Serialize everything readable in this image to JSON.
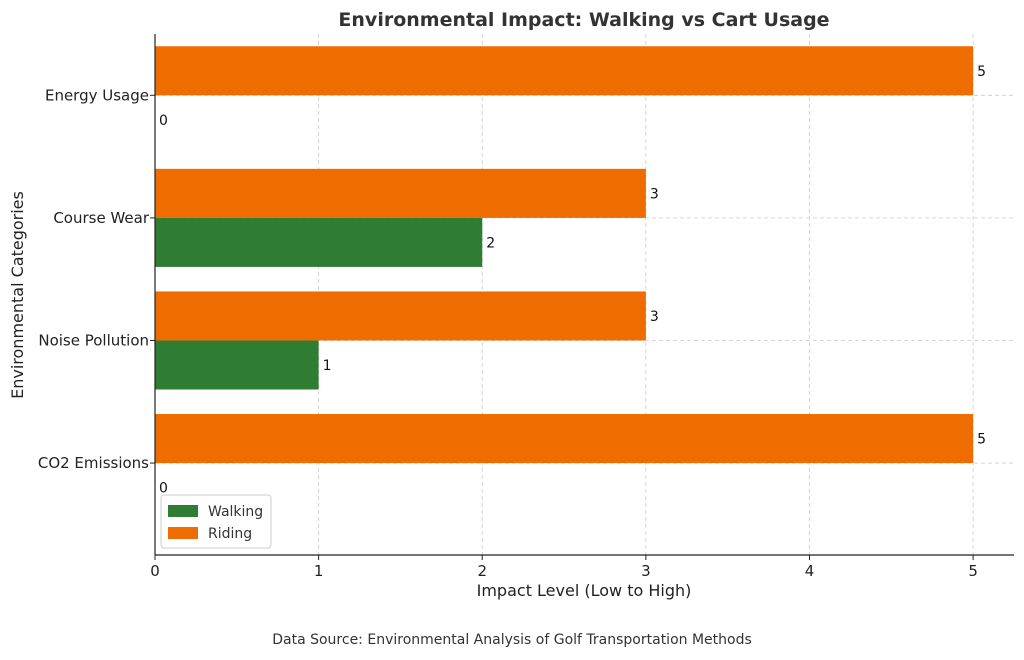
{
  "chart_data": {
    "type": "bar",
    "orientation": "horizontal",
    "title": "Environmental Impact: Walking vs Cart Usage",
    "xlabel": "Impact Level (Low to High)",
    "ylabel": "Environmental Categories",
    "categories": [
      "CO2 Emissions",
      "Noise Pollution",
      "Course Wear",
      "Energy Usage"
    ],
    "series": [
      {
        "name": "Walking",
        "values": [
          0,
          1,
          2,
          0
        ],
        "color": "#2e7d32"
      },
      {
        "name": "Riding",
        "values": [
          5,
          3,
          3,
          5
        ],
        "color": "#ef6c00"
      }
    ],
    "xlim": [
      0,
      5.25
    ],
    "xticks": [
      "0",
      "1",
      "2",
      "3",
      "4",
      "5"
    ],
    "grid": true,
    "legend_position": "lower-left"
  },
  "footer": {
    "source": "Data Source: Environmental Analysis of Golf Transportation Methods"
  }
}
